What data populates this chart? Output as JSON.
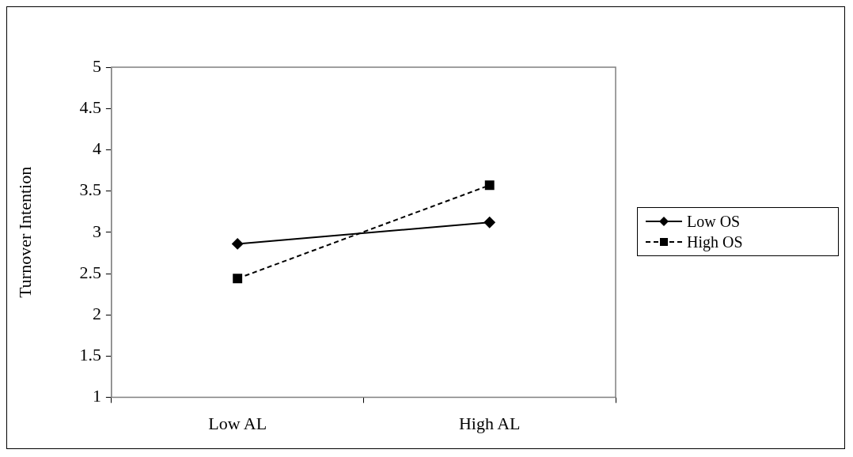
{
  "chart_data": {
    "type": "line",
    "ylabel": "Turnover Intention",
    "categories": [
      "Low AL",
      "High AL"
    ],
    "series": [
      {
        "name": "Low OS",
        "color": "#000000",
        "values": [
          2.86,
          3.12
        ],
        "marker": "diamond",
        "line_style": "solid"
      },
      {
        "name": "High OS",
        "color": "#000000",
        "values": [
          2.44,
          3.57
        ],
        "marker": "square",
        "line_style": "dashed"
      }
    ],
    "ylim": [
      1,
      5
    ],
    "yticks": [
      1,
      1.5,
      2,
      2.5,
      3,
      3.5,
      4,
      4.5,
      5
    ],
    "grid": false,
    "legend": "right"
  }
}
